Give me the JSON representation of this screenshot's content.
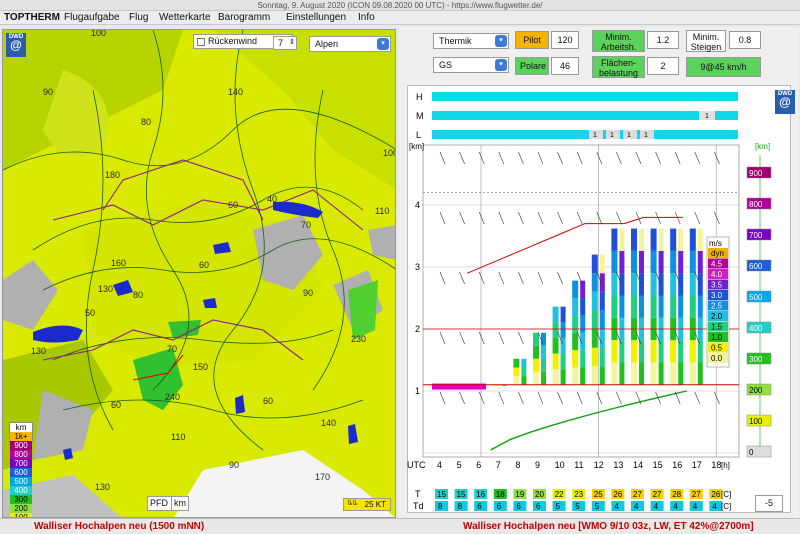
{
  "window": {
    "title": "Sonntag, 9. August 2020 (ICON 09.08.2020 00 UTC) - https://www.flugwetter.de/"
  },
  "menu": [
    "TOPTHERM",
    "Flugaufgabe",
    "Flug",
    "Wetterkarte",
    "Barogramm",
    "Einstellungen",
    "Info"
  ],
  "map": {
    "checkbox_label": "Rückenwind",
    "stepper_value": "7",
    "region_select": "Alpen",
    "logo_text": "DWD",
    "unit_buttons": [
      "PFD",
      "km"
    ],
    "wind_scale": "25 KT",
    "legend_header": "km",
    "legend": [
      {
        "label": "1k+",
        "color": "#f5b800"
      },
      {
        "label": "900",
        "color": "#a0006e"
      },
      {
        "label": "800",
        "color": "#b0009a"
      },
      {
        "label": "700",
        "color": "#7a00c8"
      },
      {
        "label": "600",
        "color": "#1b5fe0"
      },
      {
        "label": "500",
        "color": "#00a8e8"
      },
      {
        "label": "400",
        "color": "#20d0c8"
      },
      {
        "label": "300",
        "color": "#20c020"
      },
      {
        "label": "200",
        "color": "#90e040"
      },
      {
        "label": "100",
        "color": "#e6f000"
      }
    ],
    "contour_labels": [
      "100",
      "90",
      "80",
      "140",
      "180",
      "60",
      "40",
      "70",
      "110",
      "160",
      "60",
      "130",
      "50",
      "80",
      "90",
      "70",
      "130",
      "150",
      "60",
      "240",
      "110",
      "60",
      "140",
      "230",
      "90",
      "130",
      "170",
      "100"
    ]
  },
  "controls": {
    "mode_select": "Thermik",
    "glider_select": "GS",
    "pilot_button": "Pilot",
    "pilot_value": "120",
    "polare_button": "Polare",
    "polare_value": "46",
    "min_arbeit_label": "Minim. Arbeitsh.",
    "min_arbeit_value": "1.2",
    "min_steigen_label": "Minim. Steigen",
    "min_steigen_value": "0.8",
    "flaechen_label": "Flächen-belastung",
    "flaechen_value": "2",
    "result": "9@45 km/h"
  },
  "chart": {
    "row_labels": [
      "H",
      "M",
      "L"
    ],
    "y_left_unit": "[km]",
    "y_right_unit": "[km]",
    "y_ticks": [
      "1",
      "2",
      "3",
      "4"
    ],
    "right_scale": [
      "900",
      "800",
      "700",
      "600",
      "500",
      "400",
      "300",
      "200",
      "100",
      "0"
    ],
    "x_label": "UTC",
    "x_ticks": [
      "4",
      "5",
      "6",
      "7",
      "8",
      "9",
      "10",
      "11",
      "12",
      "13",
      "14",
      "15",
      "16",
      "17",
      "18"
    ],
    "x_unit": "[h]",
    "legend_header": "m/s",
    "legend": [
      {
        "label": "dyn",
        "color": "#f0b000"
      },
      {
        "label": "4.5",
        "color": "#b000a0"
      },
      {
        "label": "4.0",
        "color": "#d020c0"
      },
      {
        "label": "3.5",
        "color": "#7020d0"
      },
      {
        "label": "3.0",
        "color": "#2050d8"
      },
      {
        "label": "2.5",
        "color": "#1090e0"
      },
      {
        "label": "2.0",
        "color": "#20c0e0"
      },
      {
        "label": "1.5",
        "color": "#20d080"
      },
      {
        "label": "1.0",
        "color": "#20c020"
      },
      {
        "label": "0.5",
        "color": "#f0f000"
      },
      {
        "label": "0.0",
        "color": "#f4f4a0"
      }
    ],
    "T_label": "T",
    "Td_label": "Td",
    "T_values": [
      "15",
      "15",
      "16",
      "18",
      "19",
      "20",
      "22",
      "23",
      "25",
      "26",
      "27",
      "27",
      "28",
      "27",
      "26"
    ],
    "Td_values": [
      "8",
      "8",
      "6",
      "6",
      "6",
      "6",
      "5",
      "5",
      "5",
      "4",
      "4",
      "4",
      "4",
      "4",
      "4"
    ],
    "temp_unit": "[C]",
    "offset_value": "-5",
    "cloud_label": "1"
  },
  "status": {
    "left": "Walliser Hochalpen neu (1500 mNN)",
    "right": "Walliser Hochalpen neu [WMO 9/10 03z, LW, ET  42%@2700m]"
  }
}
